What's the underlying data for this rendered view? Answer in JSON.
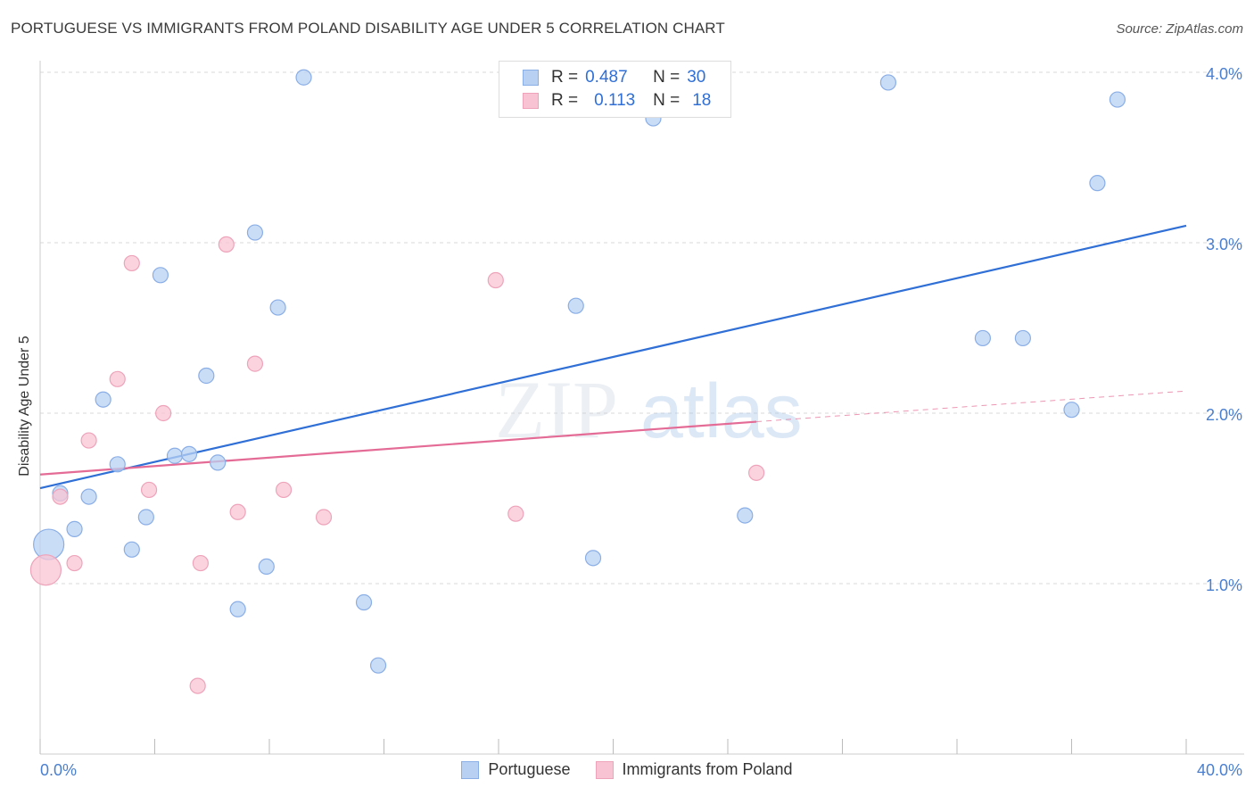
{
  "header": {
    "title": "PORTUGUESE VS IMMIGRANTS FROM POLAND DISABILITY AGE UNDER 5 CORRELATION CHART",
    "source": "Source: ZipAtlas.com"
  },
  "legend": {
    "r_label": "R =",
    "n_label": "N =",
    "series1": {
      "r": "0.487",
      "n": "30"
    },
    "series2": {
      "r": "0.113",
      "n": "18"
    }
  },
  "colors": {
    "blue_fill": "#b8d1f3",
    "blue_stroke": "#8aaee6",
    "blue_line": "#2f6fd6",
    "pink_fill": "#f8c4d4",
    "pink_stroke": "#eea3ba",
    "pink_line": "#e46b95",
    "grid": "#d9d9d9",
    "tick": "#4a7fd0"
  },
  "watermark": {
    "zip": "ZIP",
    "atlas": "atlas"
  },
  "chart_data": {
    "type": "scatter",
    "title": "PORTUGUESE VS IMMIGRANTS FROM POLAND DISABILITY AGE UNDER 5 CORRELATION CHART",
    "xlabel": "",
    "ylabel": "Disability Age Under 5",
    "xlim": [
      0,
      40
    ],
    "ylim": [
      0,
      4.2
    ],
    "x_tick_labels": [
      "0.0%",
      "40.0%"
    ],
    "y_ticks": [
      1,
      2,
      3,
      4
    ],
    "y_tick_labels": [
      "1.0%",
      "2.0%",
      "3.0%",
      "4.0%"
    ],
    "grid": true,
    "series": [
      {
        "name": "Portuguese",
        "color": "#2f6fd6",
        "points": [
          {
            "x": 9.2,
            "y": 3.97
          },
          {
            "x": 29.6,
            "y": 3.94
          },
          {
            "x": 37.6,
            "y": 3.84
          },
          {
            "x": 21.4,
            "y": 3.73
          },
          {
            "x": 36.9,
            "y": 3.35
          },
          {
            "x": 7.5,
            "y": 3.06
          },
          {
            "x": 4.2,
            "y": 2.81
          },
          {
            "x": 8.3,
            "y": 2.62
          },
          {
            "x": 18.7,
            "y": 2.63
          },
          {
            "x": 32.9,
            "y": 2.44
          },
          {
            "x": 34.3,
            "y": 2.44
          },
          {
            "x": 5.8,
            "y": 2.22
          },
          {
            "x": 2.2,
            "y": 2.08
          },
          {
            "x": 36.0,
            "y": 2.02
          },
          {
            "x": 4.7,
            "y": 1.75
          },
          {
            "x": 5.2,
            "y": 1.76
          },
          {
            "x": 2.7,
            "y": 1.7
          },
          {
            "x": 6.2,
            "y": 1.71
          },
          {
            "x": 0.7,
            "y": 1.53
          },
          {
            "x": 1.7,
            "y": 1.51
          },
          {
            "x": 3.7,
            "y": 1.39
          },
          {
            "x": 24.6,
            "y": 1.4
          },
          {
            "x": 1.2,
            "y": 1.32
          },
          {
            "x": 3.2,
            "y": 1.2
          },
          {
            "x": 19.3,
            "y": 1.15
          },
          {
            "x": 7.9,
            "y": 1.1
          },
          {
            "x": 0.3,
            "y": 1.23,
            "size": "large"
          },
          {
            "x": 6.9,
            "y": 0.85
          },
          {
            "x": 11.3,
            "y": 0.89
          },
          {
            "x": 11.8,
            "y": 0.52
          }
        ],
        "trend": {
          "x_start": 0,
          "y_start": 1.56,
          "x_end": 40,
          "y_end": 3.1
        }
      },
      {
        "name": "Immigrants from Poland",
        "color": "#e46b95",
        "points": [
          {
            "x": 6.5,
            "y": 2.99
          },
          {
            "x": 3.2,
            "y": 2.88
          },
          {
            "x": 15.9,
            "y": 2.78
          },
          {
            "x": 7.5,
            "y": 2.29
          },
          {
            "x": 2.7,
            "y": 2.2
          },
          {
            "x": 4.3,
            "y": 2.0
          },
          {
            "x": 1.7,
            "y": 1.84
          },
          {
            "x": 25.0,
            "y": 1.65
          },
          {
            "x": 3.8,
            "y": 1.55
          },
          {
            "x": 8.5,
            "y": 1.55
          },
          {
            "x": 0.7,
            "y": 1.51
          },
          {
            "x": 6.9,
            "y": 1.42
          },
          {
            "x": 9.9,
            "y": 1.39
          },
          {
            "x": 16.6,
            "y": 1.41
          },
          {
            "x": 1.2,
            "y": 1.12
          },
          {
            "x": 5.6,
            "y": 1.12
          },
          {
            "x": 0.2,
            "y": 1.08,
            "size": "large"
          },
          {
            "x": 5.5,
            "y": 0.4
          }
        ],
        "trend": {
          "x_start": 0,
          "y_start": 1.64,
          "x_end": 25,
          "y_end": 1.95,
          "dash_x_end": 40,
          "dash_y_end": 2.13
        }
      }
    ]
  }
}
